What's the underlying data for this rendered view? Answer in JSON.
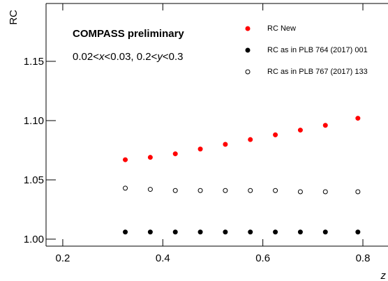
{
  "chart_data": {
    "type": "scatter",
    "title": "COMPASS preliminary",
    "subtitle_parts": [
      "0.02<",
      "x",
      "<0.03, 0.2<",
      "y",
      "<0.3"
    ],
    "xlabel": "z",
    "ylabel": "RC",
    "x": [
      0.325,
      0.375,
      0.425,
      0.475,
      0.525,
      0.575,
      0.625,
      0.675,
      0.725,
      0.79
    ],
    "series": [
      {
        "name": "RC New",
        "color": "#ff0000",
        "marker": "filled",
        "values": [
          1.067,
          1.069,
          1.072,
          1.076,
          1.08,
          1.084,
          1.088,
          1.092,
          1.096,
          1.102
        ]
      },
      {
        "name": "RC as in PLB 764 (2017) 001",
        "color": "#000000",
        "marker": "filled",
        "values": [
          1.006,
          1.006,
          1.006,
          1.006,
          1.006,
          1.006,
          1.006,
          1.006,
          1.006,
          1.006
        ]
      },
      {
        "name": "RC as in  PLB 767 (2017) 133",
        "color": "#000000",
        "marker": "open",
        "values": [
          1.043,
          1.042,
          1.041,
          1.041,
          1.041,
          1.041,
          1.041,
          1.04,
          1.04,
          1.04
        ]
      }
    ],
    "xlim": [
      0.1666,
      0.8502
    ],
    "ylim": [
      0.9941,
      1.1988
    ],
    "xticks": [
      0.2,
      0.4,
      0.6,
      0.8
    ],
    "yticks": [
      {
        "value": 1.0,
        "label": "1.00"
      },
      {
        "value": 1.05,
        "label": "1.05"
      },
      {
        "value": 1.1,
        "label": "1.10"
      },
      {
        "value": 1.15,
        "label": "1.15"
      }
    ]
  }
}
